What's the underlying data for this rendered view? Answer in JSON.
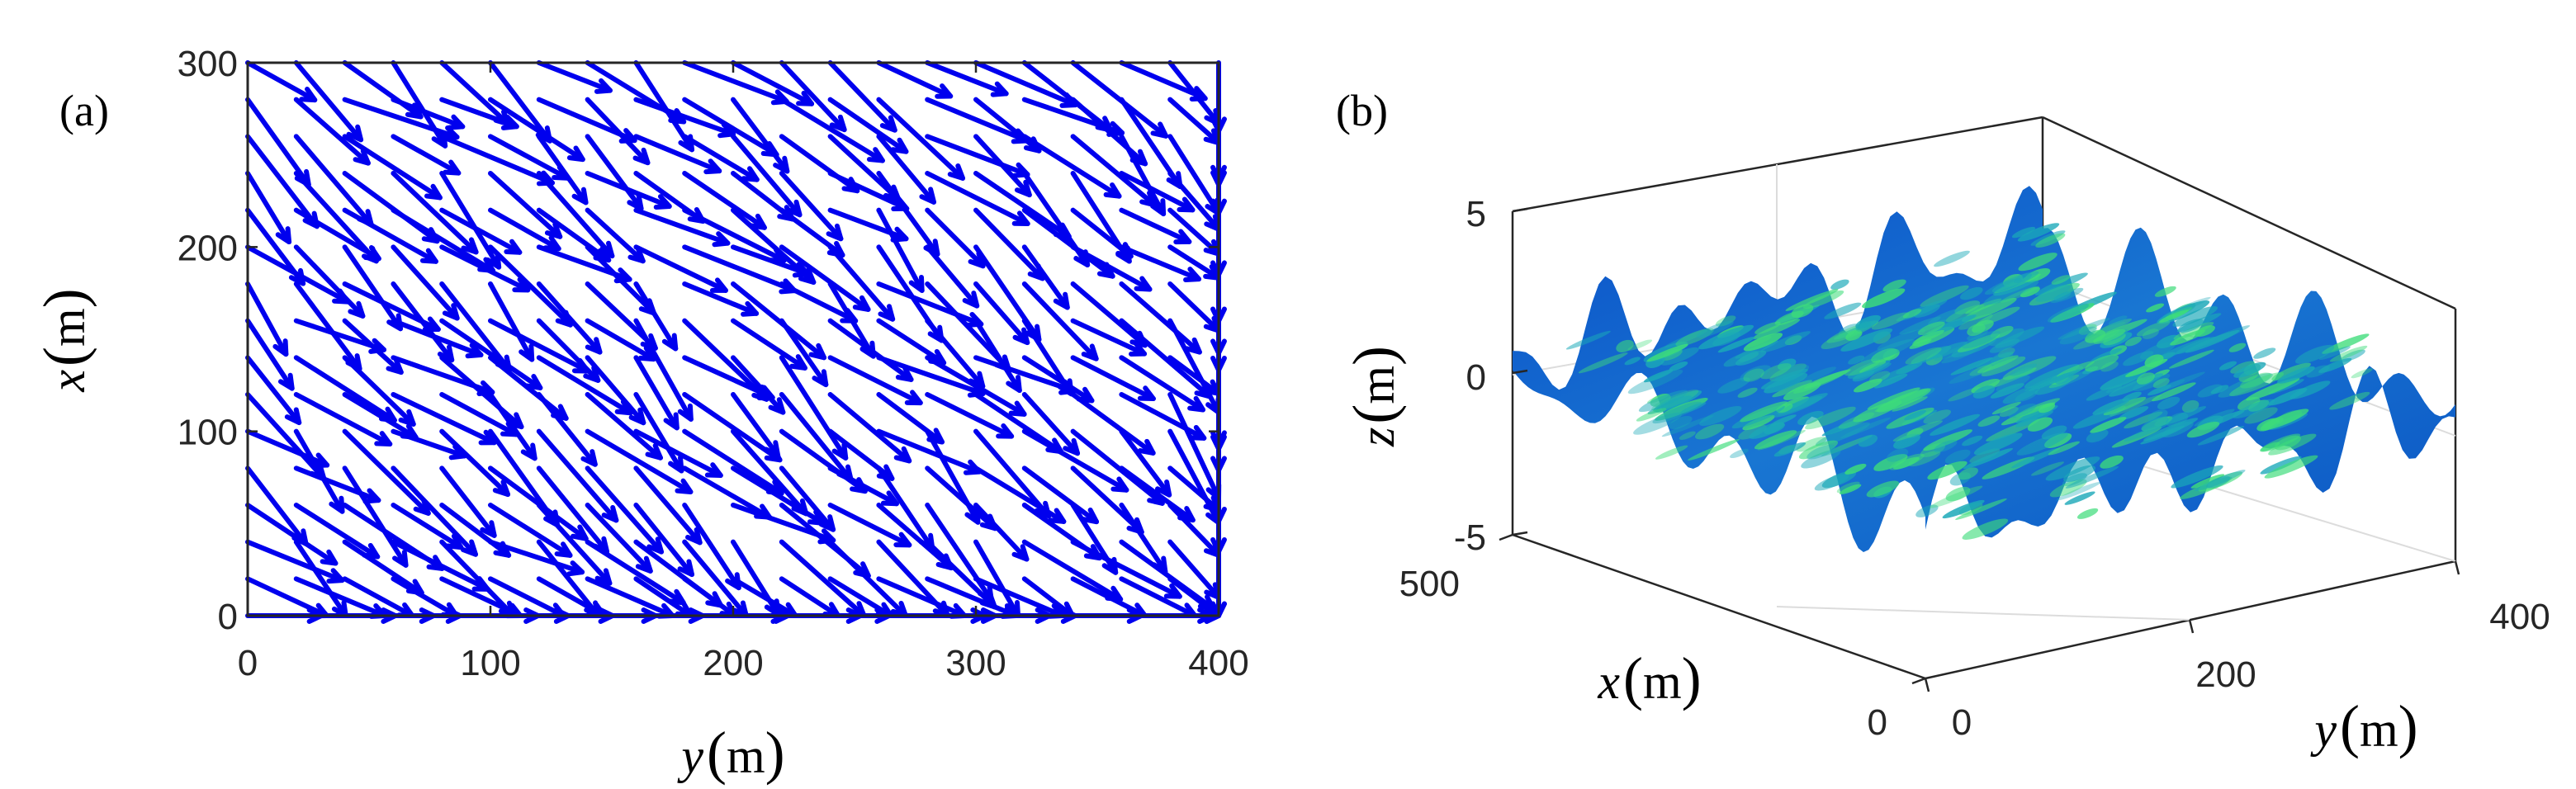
{
  "panels": {
    "a": {
      "label": "(a)"
    },
    "b": {
      "label": "(b)"
    }
  },
  "chart_data": [
    {
      "panel": "(a)",
      "type": "quiver",
      "xlabel": {
        "var": "y",
        "unit": "m"
      },
      "ylabel": {
        "var": "x",
        "unit": "m"
      },
      "xlim": [
        0,
        400
      ],
      "ylim": [
        0,
        300
      ],
      "xticks": [
        "0",
        "100",
        "200",
        "300",
        "400"
      ],
      "yticks": [
        "0",
        "100",
        "200",
        "300"
      ],
      "arrow_color": "#0000ee",
      "grid_spacing": [
        20,
        20
      ],
      "mean_direction_deg": -40,
      "direction_spread_deg": 22,
      "arrow_length": 38
    },
    {
      "panel": "(b)",
      "type": "surface",
      "xlabel": {
        "var": "y",
        "unit": "m"
      },
      "ylabel": {
        "var": "x",
        "unit": "m"
      },
      "zlabel": {
        "var": "z",
        "unit": "m"
      },
      "xlim": [
        0,
        400
      ],
      "ylim": [
        0,
        500
      ],
      "zlim": [
        -5,
        5
      ],
      "xticks": [
        "0",
        "200",
        "400"
      ],
      "yticks": [
        "0",
        "500"
      ],
      "zticks": [
        "-5",
        "0",
        "5"
      ],
      "colors": [
        "#0a4fc8",
        "#1aa8b8",
        "#3ddc7a"
      ],
      "view": "isometric",
      "grid": true
    }
  ]
}
